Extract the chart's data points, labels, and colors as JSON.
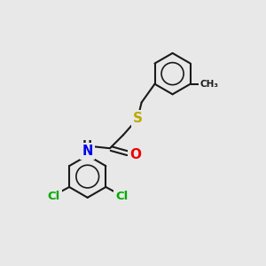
{
  "background_color": "#e8e8e8",
  "bond_color": "#1a1a1a",
  "bond_width": 1.5,
  "atom_colors": {
    "N": "#0000ee",
    "O": "#ee0000",
    "S": "#bbaa00",
    "Cl": "#00aa00"
  },
  "font_size": 9.5,
  "figsize": [
    3.0,
    3.0
  ],
  "dpi": 100
}
